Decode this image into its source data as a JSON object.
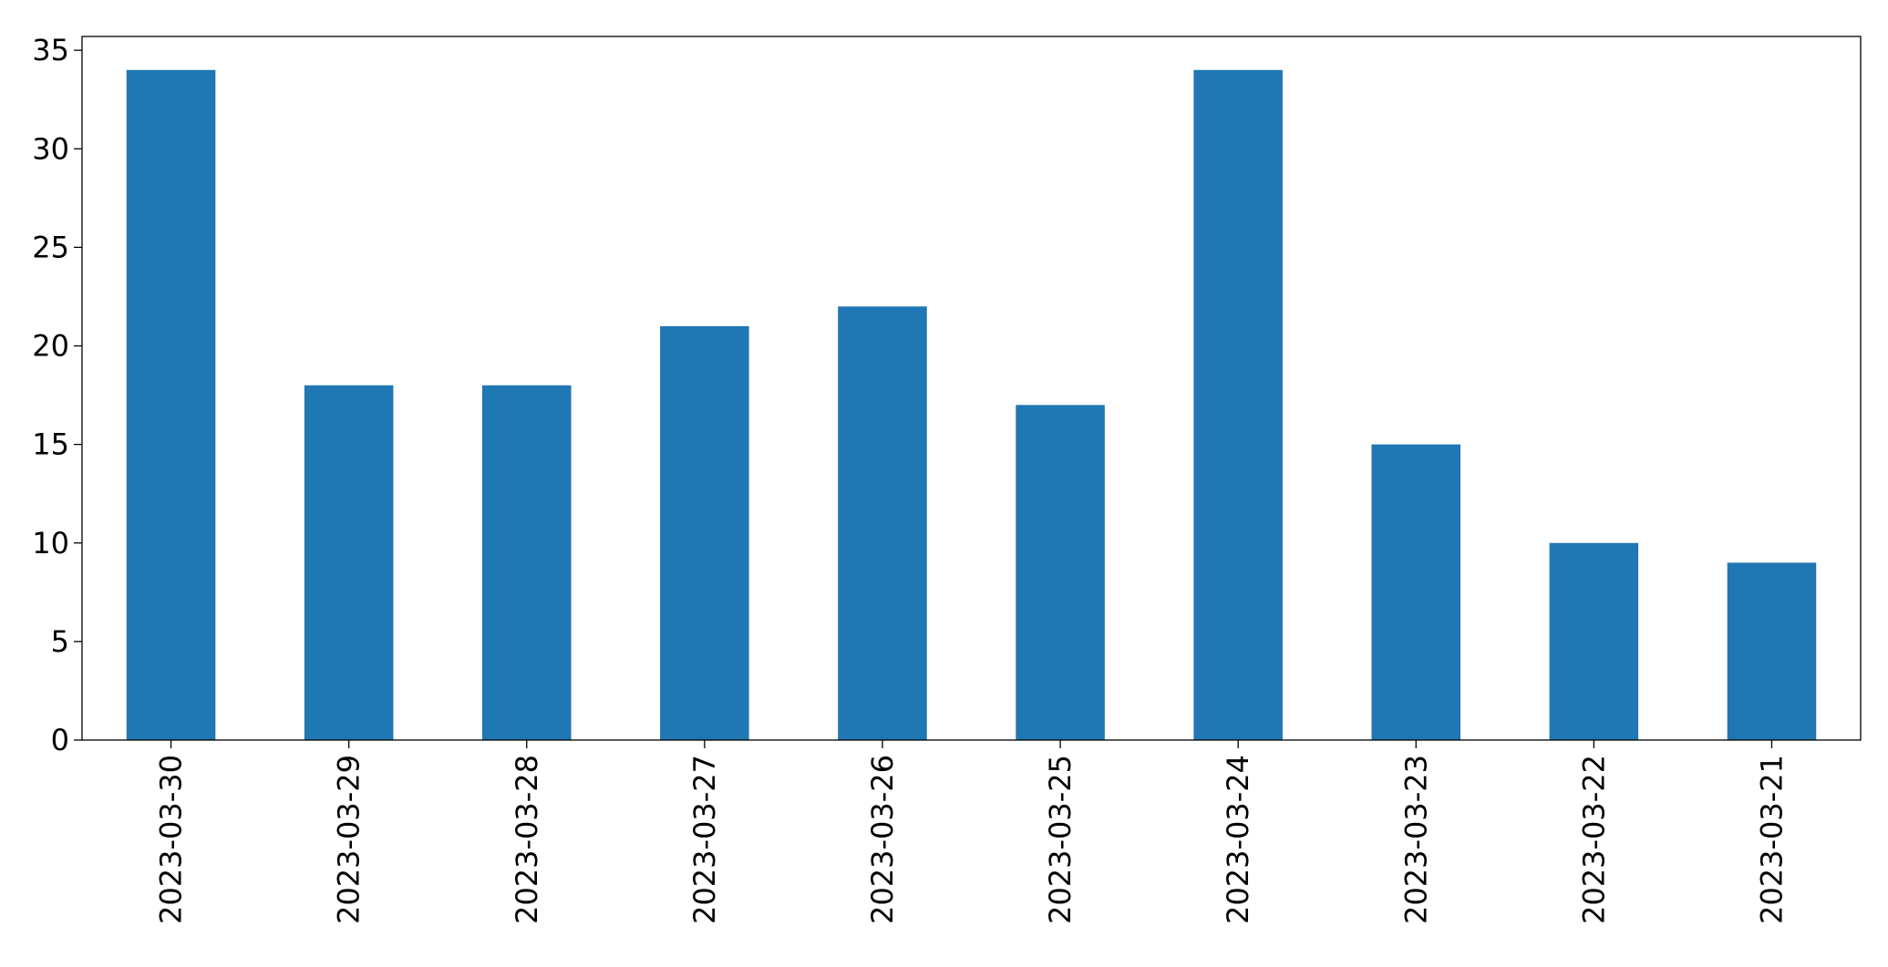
{
  "chart_data": {
    "type": "bar",
    "title": "",
    "xlabel": "",
    "ylabel": "",
    "categories": [
      "2023-03-30",
      "2023-03-29",
      "2023-03-28",
      "2023-03-27",
      "2023-03-26",
      "2023-03-25",
      "2023-03-24",
      "2023-03-23",
      "2023-03-22",
      "2023-03-21"
    ],
    "values": [
      34,
      18,
      18,
      21,
      22,
      17,
      34,
      15,
      10,
      9
    ],
    "ylim": [
      0,
      35.7
    ],
    "yticks": [
      0,
      5,
      10,
      15,
      20,
      25,
      30,
      35
    ],
    "grid": false,
    "bar_color": "#1f77b4"
  }
}
